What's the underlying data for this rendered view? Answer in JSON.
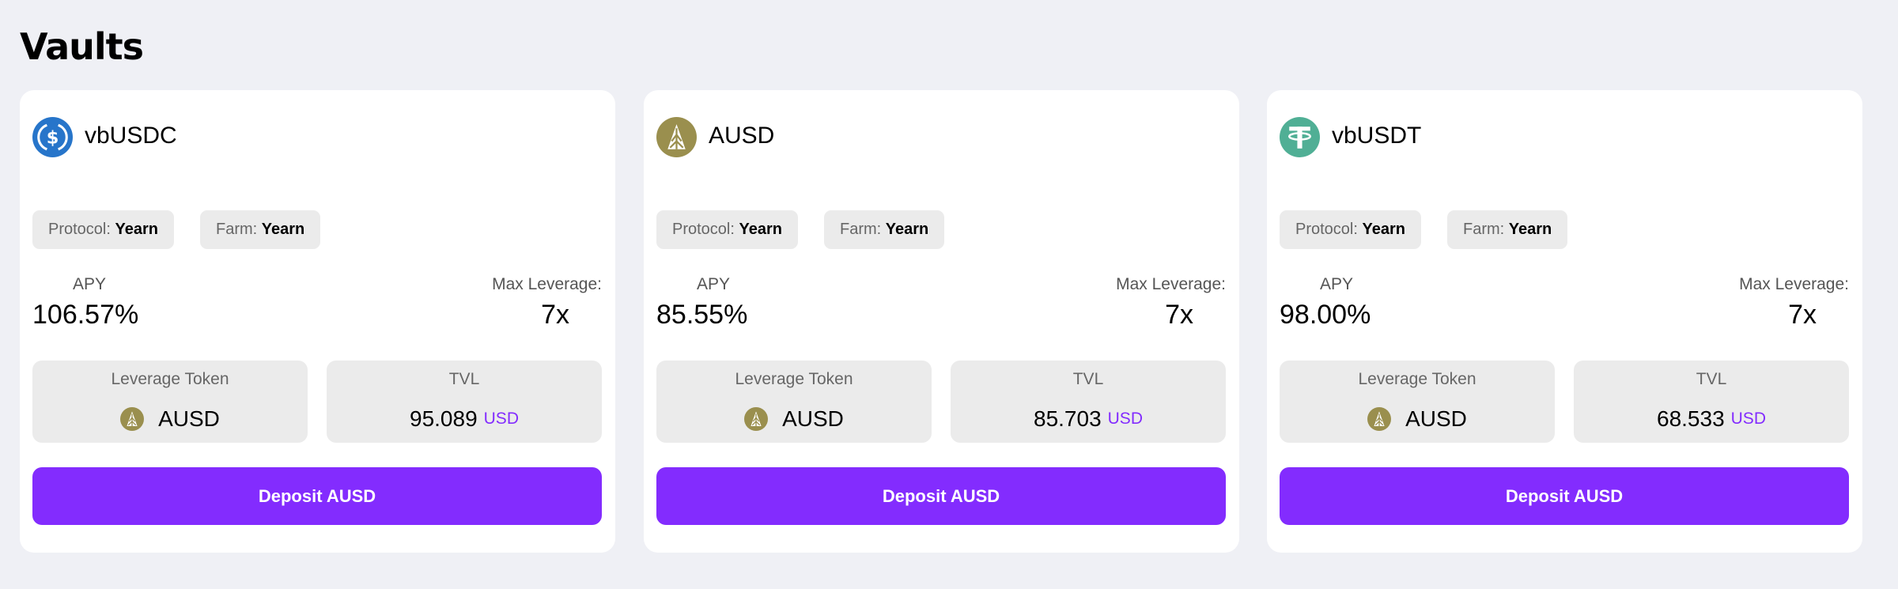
{
  "page": {
    "title": "Vaults"
  },
  "colors": {
    "accent": "#832cfe",
    "usdc": "#2775ca",
    "ausd": "#9a8f4e",
    "usdt": "#50af95"
  },
  "vaults": [
    {
      "name": "vbUSDC",
      "icon": "usdc-icon",
      "protocol_label": "Protocol:",
      "protocol": "Yearn",
      "farm_label": "Farm:",
      "farm": "Yearn",
      "apy_label": "APY",
      "apy": "106.57%",
      "lev_label": "Max Leverage:",
      "lev": "7x",
      "token_label": "Leverage Token",
      "token": "AUSD",
      "tvl_label": "TVL",
      "tvl": "95.089",
      "tvl_unit": "USD",
      "button": "Deposit AUSD"
    },
    {
      "name": "AUSD",
      "icon": "ausd-icon",
      "protocol_label": "Protocol:",
      "protocol": "Yearn",
      "farm_label": "Farm:",
      "farm": "Yearn",
      "apy_label": "APY",
      "apy": "85.55%",
      "lev_label": "Max Leverage:",
      "lev": "7x",
      "token_label": "Leverage Token",
      "token": "AUSD",
      "tvl_label": "TVL",
      "tvl": "85.703",
      "tvl_unit": "USD",
      "button": "Deposit AUSD"
    },
    {
      "name": "vbUSDT",
      "icon": "usdt-icon",
      "protocol_label": "Protocol:",
      "protocol": "Yearn",
      "farm_label": "Farm:",
      "farm": "Yearn",
      "apy_label": "APY",
      "apy": "98.00%",
      "lev_label": "Max Leverage:",
      "lev": "7x",
      "token_label": "Leverage Token",
      "token": "AUSD",
      "tvl_label": "TVL",
      "tvl": "68.533",
      "tvl_unit": "USD",
      "button": "Deposit AUSD"
    }
  ]
}
